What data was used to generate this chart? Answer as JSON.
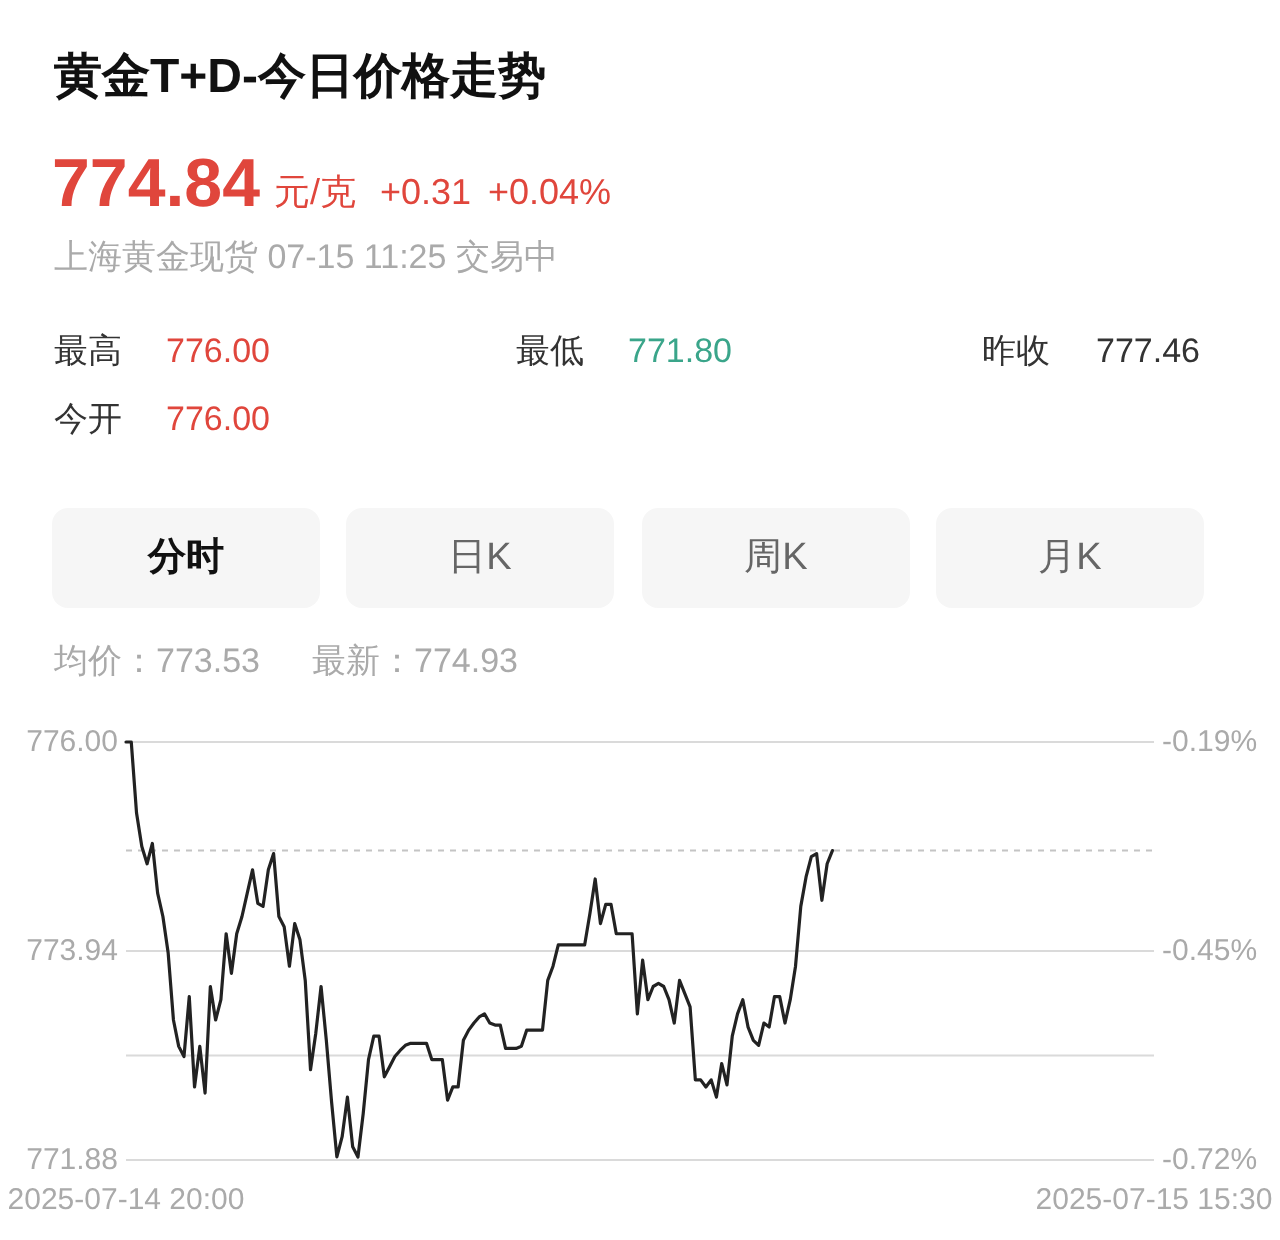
{
  "chart_data": {
    "type": "line",
    "title": "黄金T+D-今日价格走势",
    "annotations": [
      "774.84",
      "元/克",
      "+0.31",
      "+0.04%",
      "上海黄金现货 07-15 11:25 交易中",
      "最高",
      "776.00",
      "最低",
      "771.80",
      "昨收",
      "777.46",
      "今开",
      "776.00",
      "分时",
      "日K",
      "周K",
      "月K",
      "均价：773.53",
      "最新：774.93"
    ],
    "categories": [
      "2025-07-14 20:00",
      null,
      null,
      null,
      null,
      null,
      null,
      null,
      null,
      null,
      null,
      null,
      null,
      null,
      null,
      null,
      null,
      null,
      null,
      null,
      null,
      null,
      null,
      null,
      null,
      null,
      null,
      null,
      null,
      null,
      null,
      null,
      null,
      null,
      null,
      null,
      null,
      null,
      null,
      null,
      null,
      null,
      null,
      null,
      null,
      null,
      null,
      null,
      null,
      null,
      null,
      null,
      null,
      null,
      null,
      null,
      null,
      null,
      null,
      null,
      null,
      null,
      null,
      null,
      null,
      null,
      null,
      null,
      null,
      null,
      null,
      null,
      null,
      null,
      null,
      null,
      null,
      null,
      null,
      null,
      null,
      null,
      null,
      null,
      null,
      null,
      null,
      null,
      null,
      null,
      null,
      null,
      null,
      null,
      null,
      null,
      null,
      null,
      null,
      null,
      null,
      null,
      null,
      null,
      null,
      null,
      null,
      null,
      null,
      null,
      null,
      null,
      null,
      null,
      null,
      null,
      null,
      null,
      null,
      null,
      null,
      null,
      null,
      null,
      null,
      null,
      null,
      null,
      null,
      null,
      null,
      null,
      null,
      null,
      null,
      null,
      null,
      null,
      null,
      null,
      null,
      null,
      null,
      null,
      null,
      null,
      null,
      null,
      null,
      null,
      null,
      null,
      null,
      null,
      null,
      null,
      null,
      null,
      null,
      null,
      null,
      null,
      null,
      null,
      null,
      null,
      null,
      null,
      null,
      null,
      null,
      null,
      null,
      null,
      null,
      null,
      null,
      null,
      null,
      null,
      null,
      null,
      null,
      null,
      null,
      null,
      null,
      null,
      null,
      null,
      null,
      null,
      null,
      null,
      null,
      "2025-07-15 15:30"
    ],
    "series": [
      {
        "color": "#222222",
        "values": [
          776.0,
          776.0,
          775.3,
          774.97,
          774.8,
          775.0,
          774.51,
          774.28,
          773.92,
          773.26,
          773.0,
          772.9,
          773.49,
          772.6,
          773.0,
          772.54,
          773.59,
          773.26,
          773.46,
          774.11,
          773.72,
          774.11,
          774.28,
          774.51,
          774.74,
          774.41,
          774.38,
          774.74,
          774.9,
          774.28,
          774.18,
          773.79,
          774.21,
          774.05,
          773.65,
          772.77,
          773.13,
          773.59,
          773.06,
          772.45,
          771.91,
          772.11,
          772.5,
          772.01,
          771.91,
          772.34,
          772.87,
          773.1,
          773.1,
          772.7,
          772.8,
          772.9,
          772.96,
          773.01,
          773.03,
          773.03,
          773.03,
          773.03,
          772.87,
          772.87,
          772.87,
          772.47,
          772.6,
          772.6,
          773.06,
          773.16,
          773.23,
          773.29,
          773.32,
          773.23,
          773.21,
          773.21,
          772.98,
          772.98,
          772.98,
          773.0,
          773.16,
          773.16,
          773.16,
          773.16,
          773.65,
          773.79,
          774.0,
          774.0,
          774.0,
          774.0,
          774.0,
          774.0,
          774.31,
          774.65,
          774.21,
          774.4,
          774.4,
          774.11,
          774.11,
          774.11,
          774.11,
          773.32,
          773.85,
          773.46,
          773.59,
          773.62,
          773.59,
          773.46,
          773.23,
          773.65,
          773.52,
          773.39,
          772.67,
          772.67,
          772.6,
          772.67,
          772.5,
          772.83,
          772.62,
          773.1,
          773.32,
          773.46,
          773.19,
          773.06,
          773.01,
          773.23,
          773.19,
          773.49,
          773.49,
          773.23,
          773.46,
          773.79,
          774.38,
          774.67,
          774.87,
          774.9,
          774.44,
          774.8,
          774.93,
          null,
          null,
          null,
          null,
          null,
          null,
          null,
          null,
          null,
          null,
          null,
          null,
          null,
          null,
          null,
          null,
          null,
          null,
          null,
          null,
          null,
          null,
          null,
          null,
          null,
          null,
          null,
          null,
          null,
          null,
          null,
          null,
          null,
          null,
          null,
          null,
          null,
          null,
          null,
          null,
          null,
          null,
          null,
          null,
          null,
          null,
          null,
          null,
          null,
          null,
          null,
          null,
          null,
          null,
          null,
          null,
          null,
          null,
          null,
          null,
          null
        ]
      }
    ],
    "ylim": [
      771.88,
      776.0
    ],
    "yticks": [
      {
        "value": 776,
        "label": "776.00"
      },
      773.94,
      {
        "value": 772.91,
        "label": null
      },
      771.88
    ],
    "y2lim": [
      -0.718,
      -0.188
    ],
    "y2ticks": [
      {
        "value": -0.188,
        "label": "-0.19%"
      },
      {
        "value": -0.453,
        "label": "-0.45%"
      },
      {
        "value": -0.718,
        "label": "-0.72%"
      }
    ],
    "grid": "y",
    "ref_lines": [
      {
        "axis": "y",
        "value": 774.93,
        "color": "#c4c4c4",
        "line_style": "dashed"
      }
    ]
  }
}
